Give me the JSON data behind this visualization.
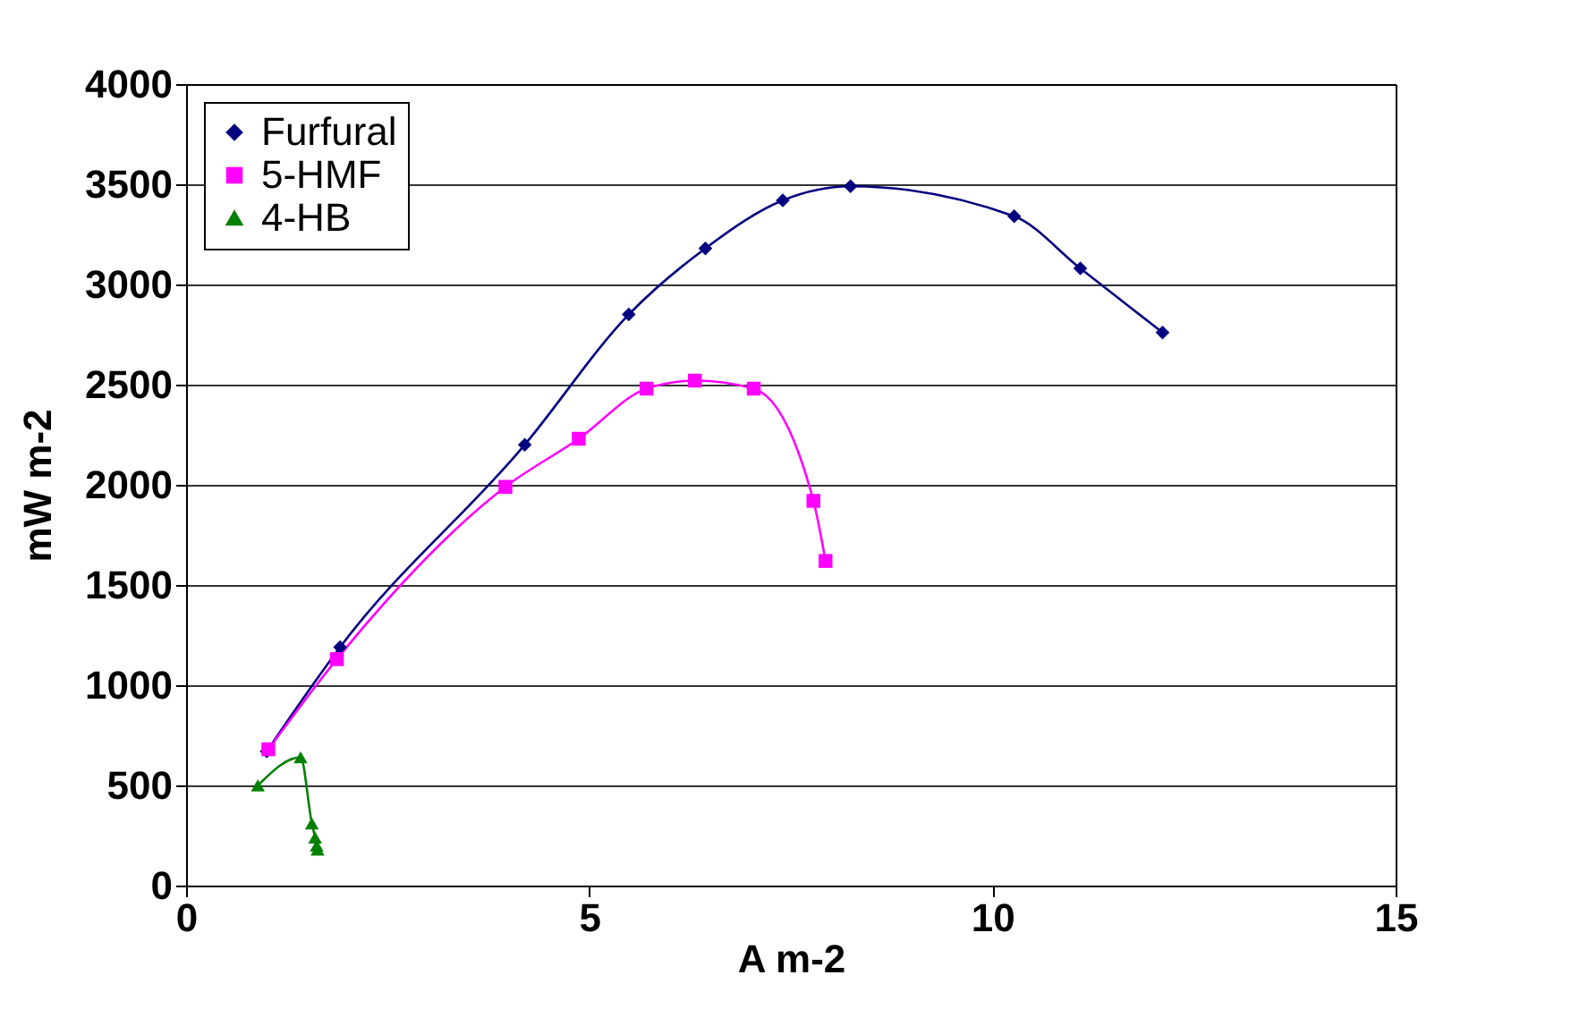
{
  "chart_data": {
    "type": "line",
    "xlabel": "A m-2",
    "ylabel": "mW m-2",
    "xlim": [
      0,
      15
    ],
    "xticks": [
      0,
      5,
      10,
      15
    ],
    "ylim": [
      0,
      4000
    ],
    "yticks": [
      0,
      500,
      1000,
      1500,
      2000,
      2500,
      3000,
      3500,
      4000
    ],
    "grid": "y",
    "legend": "top left",
    "line_style": "solid",
    "series": [
      {
        "name": "Furfural",
        "color": "#000080",
        "marker": "diamond",
        "x": [
          1.0,
          1.91,
          4.2,
          5.49,
          6.44,
          7.4,
          8.24,
          10.27,
          11.09,
          12.11
        ],
        "values": [
          670,
          1190,
          2200,
          2850,
          3180,
          3420,
          3490,
          3340,
          3080,
          2760
        ]
      },
      {
        "name": "5-HMF",
        "color": "#ff00ff",
        "marker": "square",
        "x": [
          1.02,
          1.87,
          3.96,
          4.87,
          5.71,
          6.31,
          7.04,
          7.78,
          7.93
        ],
        "values": [
          680,
          1130,
          1990,
          2230,
          2480,
          2520,
          2480,
          1920,
          1620
        ]
      },
      {
        "name": "4-HB",
        "color": "#008000",
        "marker": "triangle",
        "x": [
          0.89,
          1.42,
          1.56,
          1.6,
          1.62,
          1.63
        ],
        "values": [
          500,
          640,
          310,
          240,
          200,
          180
        ]
      }
    ]
  }
}
